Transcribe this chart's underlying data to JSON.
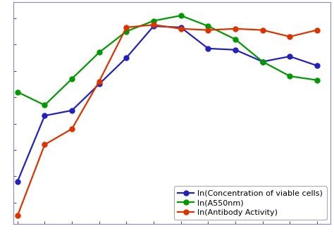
{
  "x": [
    0,
    1,
    2,
    3,
    4,
    5,
    6,
    7,
    8,
    9,
    10,
    11
  ],
  "blue_y": [
    -4.2,
    -1.7,
    -1.5,
    -0.5,
    0.5,
    1.7,
    1.65,
    0.85,
    0.8,
    0.35,
    0.55,
    0.2
  ],
  "green_y": [
    -0.8,
    -1.3,
    -0.3,
    0.7,
    1.5,
    1.9,
    2.1,
    1.7,
    1.2,
    0.35,
    -0.2,
    -0.35
  ],
  "orange_y": [
    -5.5,
    -2.8,
    -2.2,
    -0.4,
    1.65,
    1.75,
    1.6,
    1.55,
    1.6,
    1.55,
    1.3,
    1.55
  ],
  "blue_color": "#2222bb",
  "green_color": "#009900",
  "orange_color": "#dd3300",
  "legend_labels": [
    "ln(Concentration of viable cells)",
    "ln(A550nm)",
    "ln(Antibody Activity)"
  ],
  "bg_color": "#ffffff",
  "ylim": [
    -5.8,
    2.6
  ],
  "xlim": [
    -0.15,
    11.5
  ],
  "marker": "o",
  "markersize": 5,
  "markerfacecolor_blue": "#2222bb",
  "markerfacecolor_green": "#009900",
  "markerfacecolor_orange": "#dd3300",
  "linewidth": 1.6,
  "legend_fontsize": 8,
  "legend_loc": "lower right",
  "spine_color": "#8888cc",
  "tick_color": "#555555"
}
